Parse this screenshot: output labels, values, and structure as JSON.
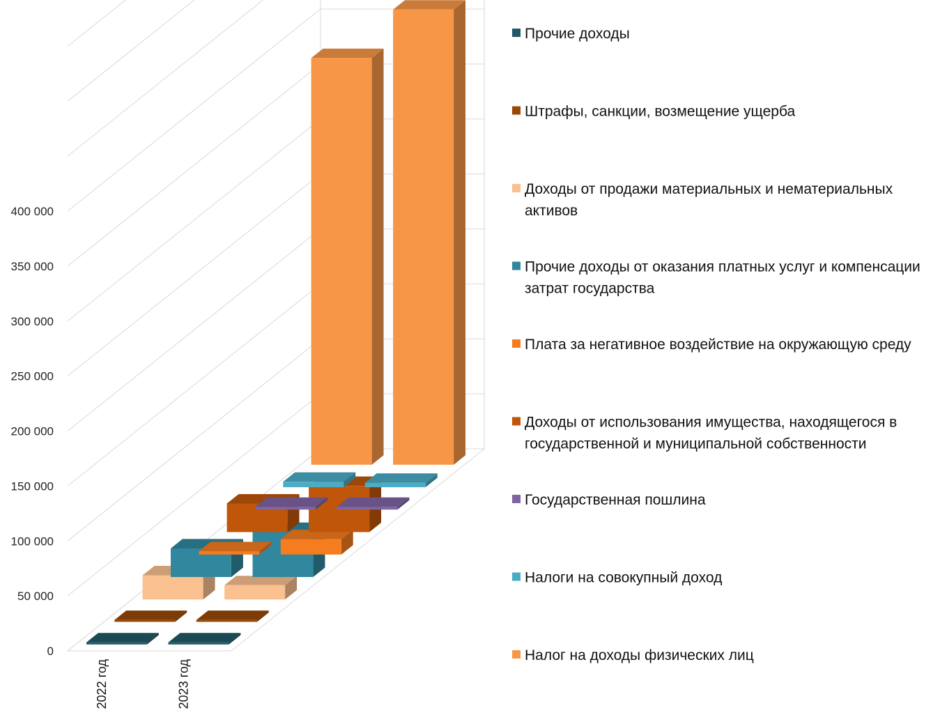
{
  "chart_data": {
    "type": "bar",
    "view": "3d-stacked-depth",
    "categories": [
      "2022 год",
      "2023 год"
    ],
    "y_ticks": [
      "0",
      "50 000",
      "100 000",
      "150 000",
      "200 000",
      "250 000",
      "300 000",
      "350 000",
      "400 000"
    ],
    "ylim": [
      0,
      400000
    ],
    "grid": true,
    "legend_position": "right",
    "series": [
      {
        "name": "Налог на доходы физических лиц",
        "color": "#F79646",
        "values": [
          370000,
          414000
        ]
      },
      {
        "name": "Налоги на совокупный доход",
        "color": "#4BACC6",
        "values": [
          5000,
          4000
        ]
      },
      {
        "name": "Государственная пошлина",
        "color": "#8064A2",
        "values": [
          2500,
          2500
        ]
      },
      {
        "name": "Доходы от использования имущества, находящегося в государственной и муниципальной собственности",
        "color": "#C0560A",
        "values": [
          26000,
          42000
        ]
      },
      {
        "name": "Плата за негативное воздействие на окружающую среду",
        "color": "#F57C1F",
        "values": [
          3000,
          14000
        ]
      },
      {
        "name": "Прочие доходы от оказания платных услуг и компенсации затрат государства",
        "color": "#31879E",
        "values": [
          26000,
          41000
        ]
      },
      {
        "name": "Доходы от продажи материальных и нематериальных активов",
        "color": "#FAC090",
        "values": [
          22000,
          13000
        ]
      },
      {
        "name": "Штрафы, санкции, возмещение ущерба",
        "color": "#984807",
        "values": [
          1800,
          1800
        ]
      },
      {
        "name": "Прочие доходы",
        "color": "#215967",
        "values": [
          1800,
          1800
        ]
      }
    ]
  }
}
